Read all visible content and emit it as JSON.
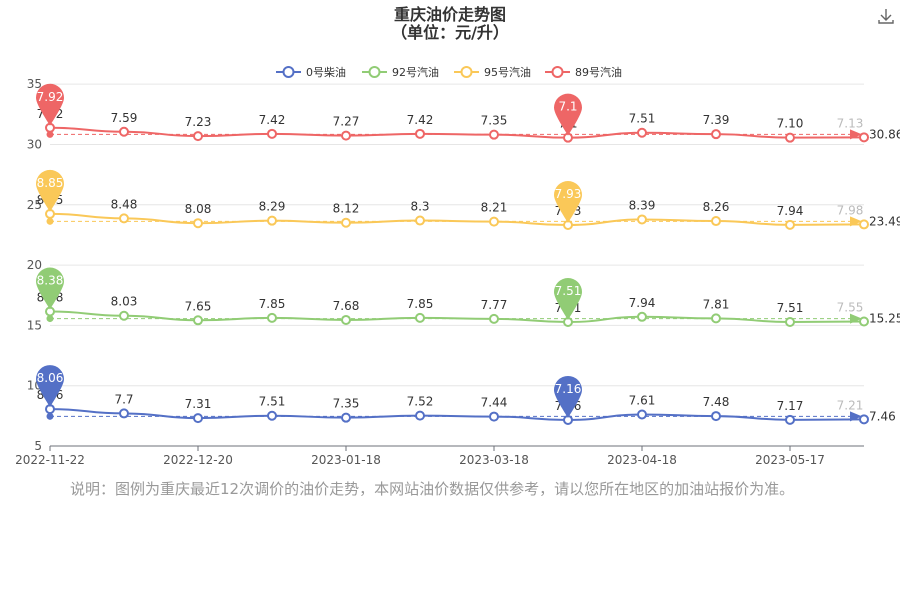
{
  "chart_data": {
    "type": "line",
    "title": "重庆油价走势图",
    "subtitle": "（单位：元/升）",
    "x_ticks": [
      "2022-11-22",
      "2022-12-20",
      "2023-01-18",
      "2023-03-18",
      "2023-04-18",
      "2023-05-17"
    ],
    "ylim": [
      5,
      37
    ],
    "y_ticks": [
      5,
      10,
      15,
      20,
      25,
      30,
      35
    ],
    "legend_position": "top",
    "series": [
      {
        "name": "0号柴油",
        "color": "#5470c6",
        "values": [
          8.06,
          7.7,
          7.31,
          7.51,
          7.35,
          7.52,
          7.44,
          7.16,
          7.61,
          7.48,
          7.17,
          7.21
        ],
        "point_labels": [
          "8.06",
          "7.7",
          "7.31",
          "7.51",
          "7.35",
          "7.52",
          "7.44",
          "7.16",
          "7.61",
          "7.48",
          "7.17",
          "7.21"
        ],
        "max_pin": "8.06",
        "min_pin": "7.16",
        "avg_label": "7.46"
      },
      {
        "name": "92号汽油",
        "color": "#91cc75",
        "values": [
          8.38,
          8.03,
          7.65,
          7.85,
          7.68,
          7.85,
          7.77,
          7.51,
          7.94,
          7.81,
          7.51,
          7.55
        ],
        "point_labels": [
          "8.38",
          "8.03",
          "7.65",
          "7.85",
          "7.68",
          "7.85",
          "7.77",
          "7.51",
          "7.94",
          "7.81",
          "7.51",
          "7.55"
        ],
        "max_pin": "8.38",
        "min_pin": "7.51",
        "avg_label": "15.25"
      },
      {
        "name": "95号汽油",
        "color": "#fac858",
        "values": [
          8.85,
          8.48,
          8.08,
          8.29,
          8.12,
          8.3,
          8.21,
          7.93,
          8.39,
          8.26,
          7.94,
          7.98
        ],
        "point_labels": [
          "8.85",
          "8.48",
          "8.08",
          "8.29",
          "8.12",
          "8.3",
          "8.21",
          "7.93",
          "8.39",
          "8.26",
          "7.94",
          "7.98"
        ],
        "max_pin": "8.85",
        "min_pin": "7.93",
        "avg_label": "23.49"
      },
      {
        "name": "89号汽油",
        "color": "#ee6666",
        "values": [
          7.92,
          7.59,
          7.23,
          7.42,
          7.27,
          7.42,
          7.35,
          7.1,
          7.51,
          7.39,
          7.1,
          7.13
        ],
        "point_labels": [
          "7.92",
          "7.59",
          "7.23",
          "7.42",
          "7.27",
          "7.42",
          "7.35",
          "7.1",
          "7.51",
          "7.39",
          "7.10",
          "7.13"
        ],
        "max_pin": "7.92",
        "min_pin": "7.1",
        "avg_label": "30.86"
      }
    ]
  },
  "note": "说明：图例为重庆最近12次调价的油价走势，本网站油价数据仅供参考，请以您所在地区的加油站报价为准。",
  "download_icon": "download-icon"
}
